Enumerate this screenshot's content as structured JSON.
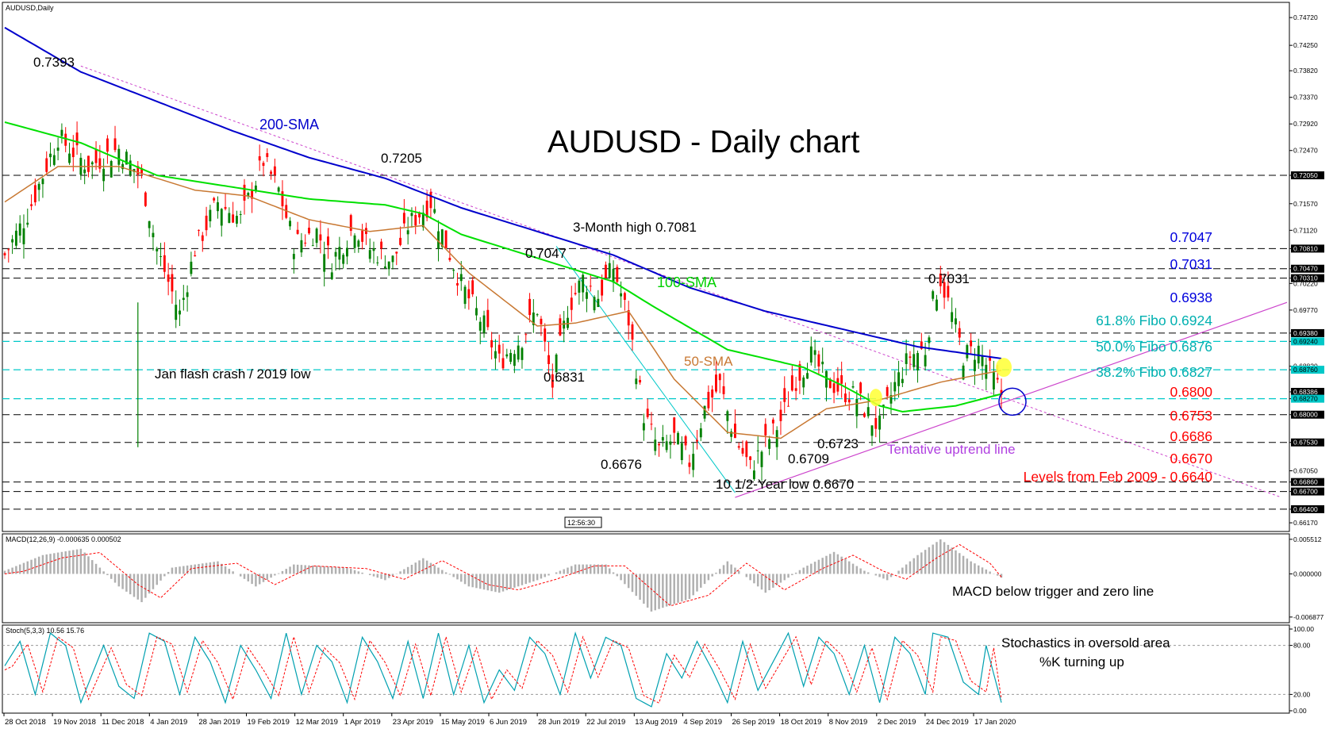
{
  "chart_data": {
    "type": "candlestick",
    "symbol": "AUDUSD,Daily",
    "title": "AUDUSD - Daily chart",
    "time_badge": "12:56:30",
    "colors": {
      "up": "#008000",
      "down": "#ff0000",
      "sma200": "#0000cc",
      "sma100": "#00e000",
      "sma50": "#c87832",
      "fibo": "#00c8c8",
      "trend": "#cc44cc",
      "blue_text": "#0000dd",
      "red_text": "#ff0000",
      "fibo_text": "#00b0b0",
      "trend_text": "#b040e0"
    },
    "price_axis": {
      "ylim": [
        0.6605,
        0.7495
      ],
      "ticks": [
        "0.74720",
        "0.74250",
        "0.73820",
        "0.73370",
        "0.72920",
        "0.72470",
        "0.72050",
        "0.71570",
        "0.71120",
        "0.70810",
        "0.70470",
        "0.70310",
        "0.70220",
        "0.69770",
        "0.69380",
        "0.69240",
        "0.68820",
        "0.68760",
        "0.68386",
        "0.68270",
        "0.68000",
        "0.67530",
        "0.67050",
        "0.66860",
        "0.66700",
        "0.66400",
        "0.66170"
      ],
      "tick_values": [
        0.7472,
        0.7425,
        0.7382,
        0.7337,
        0.7292,
        0.7247,
        0.7205,
        0.7157,
        0.7112,
        0.7081,
        0.7047,
        0.7031,
        0.7022,
        0.6977,
        0.6938,
        0.6924,
        0.6882,
        0.6876,
        0.68386,
        0.6827,
        0.68,
        0.6753,
        0.6705,
        0.6686,
        0.667,
        0.664,
        0.6617
      ],
      "highlight_boxes": [
        "0.72050",
        "0.70810",
        "0.70470",
        "0.70310",
        "0.69380",
        "0.69240",
        "0.68760",
        "0.68386",
        "0.68270",
        "0.68000",
        "0.67530",
        "0.66860",
        "0.66700",
        "0.66400"
      ]
    },
    "x_labels": [
      "28 Oct 2018",
      "19 Nov 2018",
      "11 Dec 2018",
      "4 Jan 2019",
      "28 Jan 2019",
      "19 Feb 2019",
      "12 Mar 2019",
      "1 Apr 2019",
      "23 Apr 2019",
      "15 May 2019",
      "6 Jun 2019",
      "28 Jun 2019",
      "22 Jul 2019",
      "13 Aug 2019",
      "4 Sep 2019",
      "26 Sep 2019",
      "18 Oct 2019",
      "8 Nov 2019",
      "2 Dec 2019",
      "24 Dec 2019",
      "17 Jan 2020"
    ],
    "series_keypoints": {
      "close": [
        [
          0,
          0.707
        ],
        [
          6,
          0.714
        ],
        [
          14,
          0.727
        ],
        [
          22,
          0.722
        ],
        [
          30,
          0.725
        ],
        [
          36,
          0.72
        ],
        [
          40,
          0.708
        ],
        [
          46,
          0.697
        ],
        [
          50,
          0.708
        ],
        [
          56,
          0.716
        ],
        [
          62,
          0.713
        ],
        [
          68,
          0.723
        ],
        [
          72,
          0.718
        ],
        [
          76,
          0.709
        ],
        [
          82,
          0.711
        ],
        [
          86,
          0.706
        ],
        [
          92,
          0.712
        ],
        [
          96,
          0.708
        ],
        [
          102,
          0.706
        ],
        [
          106,
          0.712
        ],
        [
          112,
          0.716
        ],
        [
          116,
          0.709
        ],
        [
          120,
          0.702
        ],
        [
          126,
          0.695
        ],
        [
          130,
          0.689
        ],
        [
          136,
          0.693
        ],
        [
          140,
          0.698
        ],
        [
          144,
          0.685
        ],
        [
          148,
          0.698
        ],
        [
          152,
          0.703
        ],
        [
          156,
          0.7
        ],
        [
          160,
          0.705
        ],
        [
          164,
          0.696
        ],
        [
          168,
          0.68
        ],
        [
          172,
          0.674
        ],
        [
          176,
          0.676
        ],
        [
          180,
          0.672
        ],
        [
          184,
          0.681
        ],
        [
          188,
          0.685
        ],
        [
          192,
          0.676
        ],
        [
          196,
          0.671
        ],
        [
          200,
          0.675
        ],
        [
          204,
          0.679
        ],
        [
          208,
          0.686
        ],
        [
          212,
          0.69
        ],
        [
          216,
          0.686
        ],
        [
          220,
          0.684
        ],
        [
          224,
          0.683
        ],
        [
          228,
          0.679
        ],
        [
          230,
          0.678
        ],
        [
          234,
          0.685
        ],
        [
          238,
          0.69
        ],
        [
          242,
          0.691
        ],
        [
          244,
          0.699
        ],
        [
          246,
          0.703
        ],
        [
          248,
          0.699
        ],
        [
          252,
          0.69
        ],
        [
          256,
          0.691
        ],
        [
          260,
          0.686
        ],
        [
          262,
          0.6835
        ]
      ],
      "sma200": [
        [
          0,
          0.7455
        ],
        [
          20,
          0.738
        ],
        [
          40,
          0.733
        ],
        [
          60,
          0.728
        ],
        [
          80,
          0.7235
        ],
        [
          100,
          0.72
        ],
        [
          120,
          0.715
        ],
        [
          140,
          0.711
        ],
        [
          160,
          0.707
        ],
        [
          180,
          0.7015
        ],
        [
          200,
          0.6975
        ],
        [
          220,
          0.6945
        ],
        [
          240,
          0.6915
        ],
        [
          262,
          0.6895
        ]
      ],
      "sma100": [
        [
          0,
          0.7295
        ],
        [
          20,
          0.726
        ],
        [
          40,
          0.7205
        ],
        [
          60,
          0.7185
        ],
        [
          80,
          0.7165
        ],
        [
          100,
          0.7155
        ],
        [
          110,
          0.714
        ],
        [
          120,
          0.7105
        ],
        [
          140,
          0.7065
        ],
        [
          160,
          0.7025
        ],
        [
          170,
          0.6985
        ],
        [
          190,
          0.691
        ],
        [
          210,
          0.688
        ],
        [
          220,
          0.685
        ],
        [
          230,
          0.6815
        ],
        [
          236,
          0.6805
        ],
        [
          250,
          0.6815
        ],
        [
          262,
          0.6835
        ]
      ],
      "sma50": [
        [
          0,
          0.716
        ],
        [
          14,
          0.722
        ],
        [
          30,
          0.722
        ],
        [
          50,
          0.718
        ],
        [
          64,
          0.717
        ],
        [
          80,
          0.713
        ],
        [
          96,
          0.711
        ],
        [
          110,
          0.712
        ],
        [
          122,
          0.704
        ],
        [
          140,
          0.695
        ],
        [
          150,
          0.6955
        ],
        [
          164,
          0.6975
        ],
        [
          176,
          0.686
        ],
        [
          190,
          0.677
        ],
        [
          204,
          0.676
        ],
        [
          216,
          0.681
        ],
        [
          230,
          0.6825
        ],
        [
          246,
          0.6855
        ],
        [
          262,
          0.6875
        ]
      ],
      "macd": [
        [
          0,
          0.0005
        ],
        [
          10,
          0.003
        ],
        [
          20,
          0.004
        ],
        [
          30,
          -0.002
        ],
        [
          36,
          -0.0045
        ],
        [
          44,
          0.001
        ],
        [
          56,
          0.002
        ],
        [
          66,
          -0.002
        ],
        [
          76,
          0.0015
        ],
        [
          90,
          0.001
        ],
        [
          100,
          -0.001
        ],
        [
          110,
          0.0025
        ],
        [
          122,
          -0.002
        ],
        [
          130,
          -0.003
        ],
        [
          140,
          -0.001
        ],
        [
          150,
          0.0015
        ],
        [
          158,
          0.0015
        ],
        [
          170,
          -0.006
        ],
        [
          180,
          -0.004
        ],
        [
          190,
          0.002
        ],
        [
          200,
          -0.003
        ],
        [
          210,
          0.001
        ],
        [
          218,
          0.0035
        ],
        [
          226,
          0.0005
        ],
        [
          232,
          -0.001
        ],
        [
          240,
          0.003
        ],
        [
          246,
          0.0055
        ],
        [
          254,
          0.002
        ],
        [
          262,
          -0.0006
        ]
      ],
      "stoch": [
        [
          0,
          55
        ],
        [
          4,
          85
        ],
        [
          8,
          20
        ],
        [
          12,
          95
        ],
        [
          16,
          80
        ],
        [
          20,
          10
        ],
        [
          26,
          80
        ],
        [
          30,
          30
        ],
        [
          34,
          15
        ],
        [
          38,
          95
        ],
        [
          42,
          85
        ],
        [
          46,
          20
        ],
        [
          50,
          90
        ],
        [
          54,
          60
        ],
        [
          58,
          10
        ],
        [
          62,
          80
        ],
        [
          66,
          50
        ],
        [
          70,
          15
        ],
        [
          74,
          95
        ],
        [
          78,
          20
        ],
        [
          82,
          80
        ],
        [
          86,
          60
        ],
        [
          90,
          10
        ],
        [
          94,
          90
        ],
        [
          98,
          60
        ],
        [
          102,
          15
        ],
        [
          106,
          85
        ],
        [
          110,
          15
        ],
        [
          114,
          95
        ],
        [
          118,
          20
        ],
        [
          122,
          80
        ],
        [
          126,
          10
        ],
        [
          130,
          50
        ],
        [
          134,
          25
        ],
        [
          138,
          90
        ],
        [
          142,
          70
        ],
        [
          146,
          20
        ],
        [
          150,
          95
        ],
        [
          154,
          40
        ],
        [
          158,
          90
        ],
        [
          162,
          80
        ],
        [
          166,
          15
        ],
        [
          170,
          5
        ],
        [
          174,
          70
        ],
        [
          178,
          40
        ],
        [
          182,
          85
        ],
        [
          186,
          50
        ],
        [
          190,
          10
        ],
        [
          194,
          85
        ],
        [
          198,
          25
        ],
        [
          202,
          60
        ],
        [
          206,
          95
        ],
        [
          210,
          30
        ],
        [
          214,
          90
        ],
        [
          218,
          70
        ],
        [
          222,
          20
        ],
        [
          226,
          80
        ],
        [
          230,
          10
        ],
        [
          234,
          90
        ],
        [
          238,
          70
        ],
        [
          242,
          20
        ],
        [
          244,
          95
        ],
        [
          248,
          90
        ],
        [
          252,
          35
        ],
        [
          256,
          20
        ],
        [
          258,
          80
        ],
        [
          262,
          10
        ]
      ]
    },
    "macd_panel": {
      "label": "MACD(12,26,9) -0.000635 0.000502",
      "ticks": [
        "0.005512",
        "0.000000",
        "-0.006877"
      ],
      "tick_values": [
        0.005512,
        0,
        -0.006877
      ],
      "ylim": [
        -0.0074,
        0.006
      ]
    },
    "stoch_panel": {
      "label": "Stoch(5,3,3) 10.56 15.76",
      "ticks": [
        "100.00",
        "80.00",
        "20.00",
        "0.00"
      ],
      "tick_values": [
        100,
        80,
        20,
        0
      ]
    },
    "annotations": {
      "sma200": "200-SMA",
      "sma100": "100-SMA",
      "sma50": "50-SMA",
      "p7393": "0.7393",
      "p7205": "0.7205",
      "p3month": "3-Month high 0.7081",
      "p7047": "0.7047",
      "p7031": "0.7031",
      "p6831": "0.6831",
      "p6676": "0.6676",
      "p6709": "0.6709",
      "p6723": "0.6723",
      "p_low": "10 1/2-Year low 0.6670",
      "crash": "Jan flash crash / 2019 low",
      "uptrend": "Tentative uptrend line",
      "macd_note": "MACD below trigger and zero line",
      "stoch_note1": "Stochastics in oversold area",
      "stoch_note2": "%K turning up",
      "right_levels": [
        {
          "text": "0.7047",
          "value": 0.7047,
          "color": "blue"
        },
        {
          "text": "0.7031",
          "value": 0.7031,
          "color": "blue"
        },
        {
          "text": "0.6938",
          "value": 0.6938,
          "color": "blue"
        },
        {
          "text": "61.8% Fibo 0.6924",
          "value": 0.6924,
          "color": "fibo"
        },
        {
          "text": "50.0% Fibo 0.6876",
          "value": 0.6876,
          "color": "fibo"
        },
        {
          "text": "38.2% Fibo 0.6827",
          "value": 0.6827,
          "color": "fibo"
        },
        {
          "text": "0.6800",
          "value": 0.68,
          "color": "red"
        },
        {
          "text": "0.6753",
          "value": 0.6753,
          "color": "red"
        },
        {
          "text": "0.6686",
          "value": 0.6686,
          "color": "red"
        },
        {
          "text": "0.6670",
          "value": 0.667,
          "color": "red"
        },
        {
          "text": "Levels from Feb 2009 - 0.6640",
          "value": 0.664,
          "color": "red"
        }
      ]
    },
    "black_levels": [
      0.7205,
      0.7081,
      0.7047,
      0.7031,
      0.6938,
      0.68,
      0.6753,
      0.6686,
      0.667,
      0.664
    ],
    "fibo_levels": [
      0.6924,
      0.6876,
      0.6827
    ]
  }
}
